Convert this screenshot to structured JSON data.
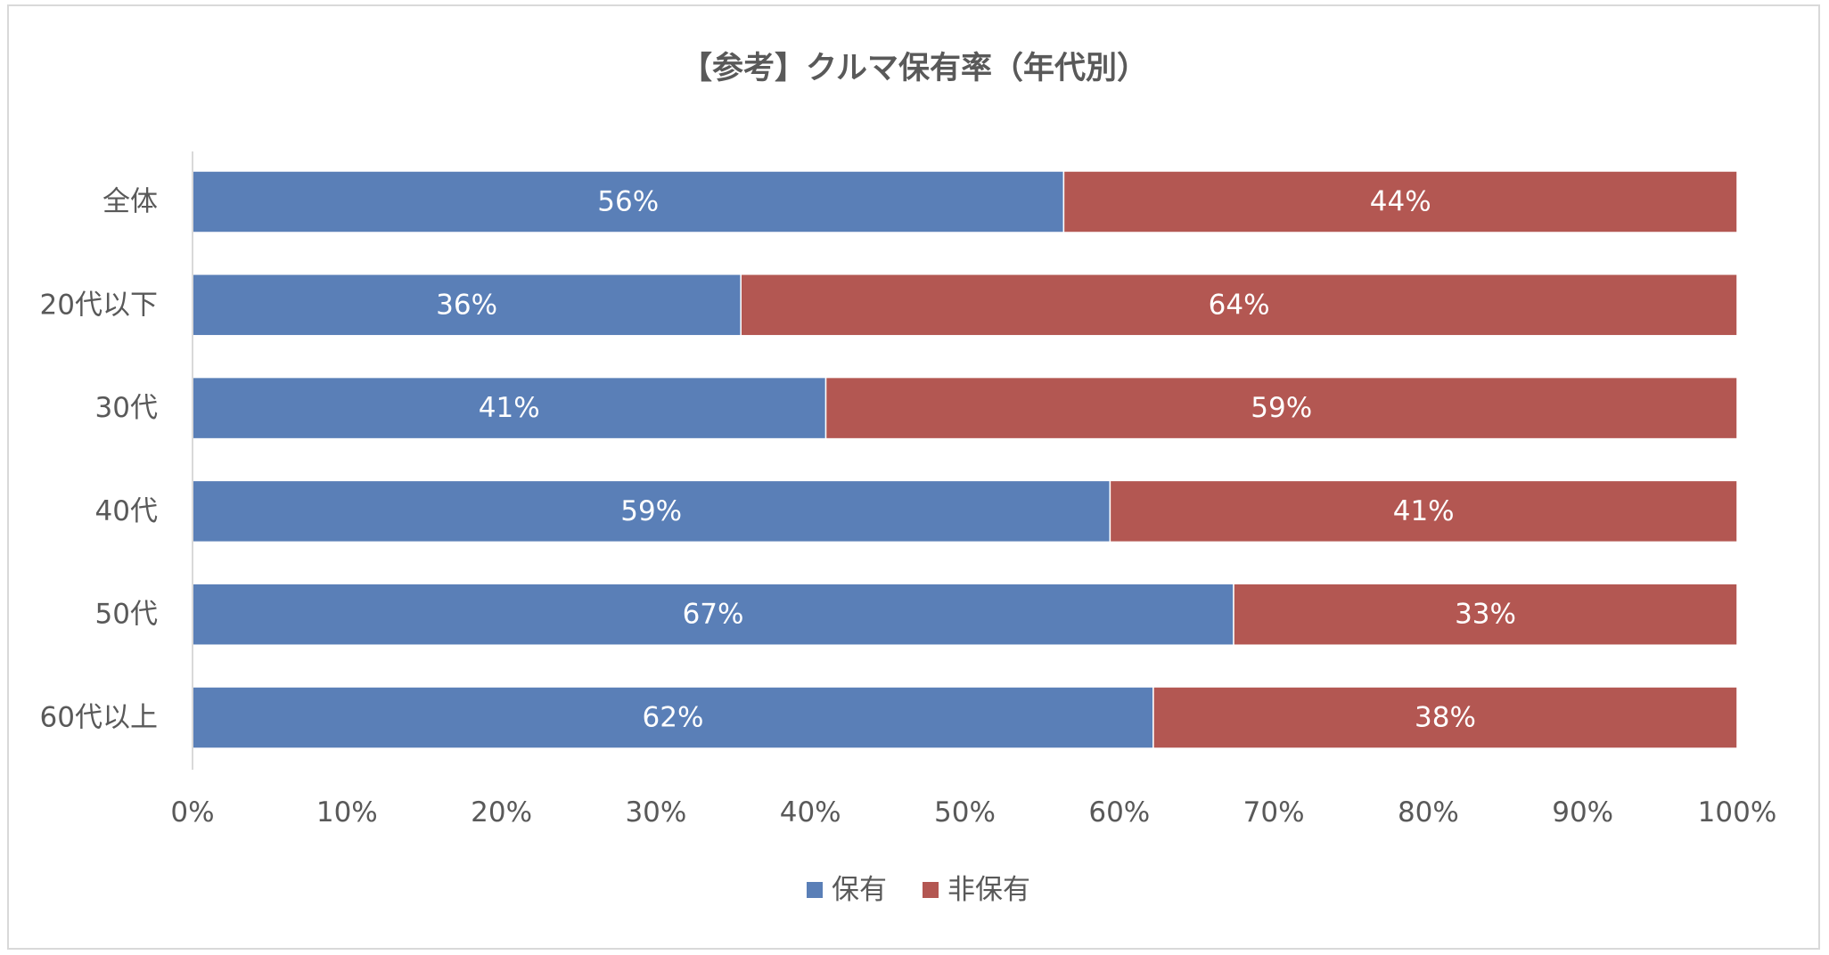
{
  "chart_data": {
    "type": "bar",
    "orientation": "horizontal",
    "stacked": "percent",
    "title": "【参考】クルマ保有率（年代別）",
    "categories": [
      "全体",
      "20代以下",
      "30代",
      "40代",
      "50代",
      "60代以上"
    ],
    "series": [
      {
        "name": "保有",
        "color": "#5A7FB7",
        "values": [
          56.4,
          35.5,
          41.0,
          59.4,
          67.4,
          62.2
        ],
        "labels": [
          "56%",
          "36%",
          "41%",
          "59%",
          "67%",
          "62%"
        ]
      },
      {
        "name": "非保有",
        "color": "#B35752",
        "values": [
          43.6,
          64.5,
          59.0,
          40.6,
          32.6,
          37.8
        ],
        "labels": [
          "44%",
          "64%",
          "59%",
          "41%",
          "33%",
          "38%"
        ]
      }
    ],
    "xlim": [
      0,
      100
    ],
    "xticks": [
      "0%",
      "10%",
      "20%",
      "30%",
      "40%",
      "50%",
      "60%",
      "70%",
      "80%",
      "90%",
      "100%"
    ],
    "grid": false,
    "legend": "bottom"
  }
}
